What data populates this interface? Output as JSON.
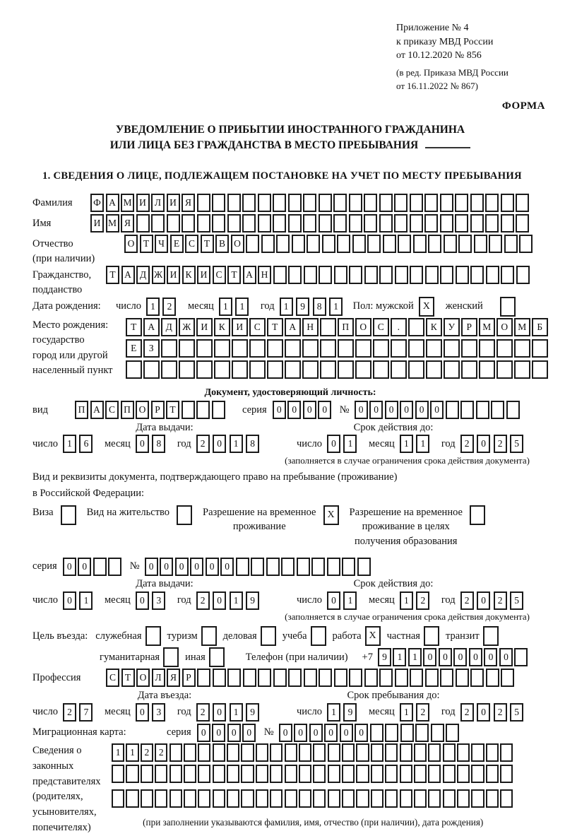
{
  "header": {
    "lines": [
      "Приложение № 4",
      "к приказу МВД России",
      "от 10.12.2020 № 856"
    ],
    "small_lines": [
      "(в ред. Приказа МВД России",
      "от 16.11.2022 № 867)"
    ]
  },
  "form_label": "ФОРМА",
  "title_line1": "УВЕДОМЛЕНИЕ О ПРИБЫТИИ ИНОСТРАННОГО ГРАЖДАНИНА",
  "title_line2": "ИЛИ ЛИЦА БЕЗ ГРАЖДАНСТВА В МЕСТО ПРЕБЫВАНИЯ",
  "section1": "1. СВЕДЕНИЯ О ЛИЦЕ, ПОДЛЕЖАЩЕМ ПОСТАНОВКЕ НА УЧЕТ ПО МЕСТУ ПРЕБЫВАНИЯ",
  "date_labels": {
    "day": "число",
    "month": "месяц",
    "year": "год"
  },
  "rows": [
    {
      "name": "surname",
      "type": "cells-row",
      "label": "Фамилия",
      "value": "ФАМИЛИЯ",
      "count": 29
    },
    {
      "name": "given-name",
      "type": "cells-row",
      "label": "Имя",
      "value": "ИМЯ",
      "count": 29
    },
    {
      "name": "patronymic",
      "type": "cells-row",
      "label": "Отчество",
      "label2": "(при наличии)",
      "value": "ОТЧЕСТВО",
      "count": 27
    },
    {
      "name": "citizenship",
      "type": "cells-row",
      "label": "Гражданство,",
      "label2": "подданство",
      "value": "ТАДЖИКИСТАН",
      "count": 28
    },
    {
      "name": "birth-date",
      "type": "date-sex-row",
      "label": "Дата рождения:",
      "day": "12",
      "month": "11",
      "year": "1981",
      "sex_male_label": "Пол: мужской",
      "sex_male": "X",
      "sex_female_label": "женский",
      "sex_female": ""
    },
    {
      "name": "birth-place",
      "type": "multi-cells",
      "labels": [
        "Место рождения:",
        "государство",
        "город или другой",
        "населенный пункт"
      ],
      "cell_rows": [
        {
          "value": "ТАДЖИКИСТАН ПОС. КУРМОМБ",
          "count": 24
        },
        {
          "value": "ЕЗ",
          "count": 24
        },
        {
          "value": "",
          "count": 24
        }
      ]
    },
    {
      "name": "identity-doc-heading",
      "type": "center-bold",
      "text": "Документ, удостоверяющий личность:"
    },
    {
      "name": "identity-doc",
      "type": "doc-row",
      "label": "вид",
      "doc_value": "ПАСПОРТ",
      "doc_count": 10,
      "series_label": "серия",
      "series_value": "0000",
      "series_count": 4,
      "number_label": "№",
      "number_value": "000000",
      "number_count": 11
    },
    {
      "name": "identity-dates-head",
      "type": "two-head",
      "left": "Дата выдачи:",
      "right": "Срок действия до:"
    },
    {
      "name": "identity-dates",
      "type": "two-dates",
      "l_day": "16",
      "l_month": "08",
      "l_year": "2018",
      "r_day": "01",
      "r_month": "11",
      "r_year": "2025"
    },
    {
      "name": "identity-validity-note",
      "type": "note-right",
      "text": "(заполняется в случае ограничения срока действия документа)"
    },
    {
      "name": "residence-doc-line1",
      "type": "para",
      "text": "Вид и реквизиты документа, подтверждающего право на пребывание (проживание)"
    },
    {
      "name": "residence-doc-line2",
      "type": "para",
      "text": "в Российской Федерации:"
    },
    {
      "name": "residence-permits",
      "type": "permits",
      "items": [
        {
          "label": "Виза",
          "checked": ""
        },
        {
          "label": "Вид на жительство",
          "checked": ""
        },
        {
          "label": "Разрешение на временное\nпроживание",
          "checked": "X"
        },
        {
          "label": "Разрешение на временное\nпроживание в целях\nполучения образования",
          "checked": ""
        }
      ]
    },
    {
      "name": "permit-series",
      "type": "doc-row",
      "series_label": "серия",
      "series_value": "00",
      "series_count": 4,
      "number_label": "№",
      "number_value": "000000",
      "number_count": 15
    },
    {
      "name": "permit-dates-head",
      "type": "two-head",
      "left": "Дата выдачи:",
      "right": "Срок действия до:"
    },
    {
      "name": "permit-dates",
      "type": "two-dates",
      "l_day": "01",
      "l_month": "03",
      "l_year": "2019",
      "r_day": "01",
      "r_month": "12",
      "r_year": "2025"
    },
    {
      "name": "permit-validity-note",
      "type": "note-right",
      "text": "(заполняется в случае ограничения срока действия документа)"
    },
    {
      "name": "visit-purpose",
      "type": "checks",
      "lead": "Цель въезда:",
      "items": [
        {
          "label": "служебная",
          "checked": ""
        },
        {
          "label": "туризм",
          "checked": ""
        },
        {
          "label": "деловая",
          "checked": ""
        },
        {
          "label": "учеба",
          "checked": ""
        },
        {
          "label": "работа",
          "checked": "X"
        },
        {
          "label": "частная",
          "checked": ""
        },
        {
          "label": "транзит",
          "checked": ""
        }
      ]
    },
    {
      "name": "visit-purpose-2",
      "type": "checks-phone",
      "items": [
        {
          "label": "гуманитарная",
          "checked": ""
        },
        {
          "label": "иная",
          "checked": ""
        }
      ],
      "phone_label": "Телефон (при наличии)",
      "phone_prefix": "+7",
      "phone_value": "911000000",
      "phone_count": 10
    },
    {
      "name": "profession",
      "type": "cells-row",
      "label": "Профессия",
      "value": "СТОЛЯР",
      "count": 27
    },
    {
      "name": "entry-stay-head",
      "type": "two-head",
      "left": "Дата въезда:",
      "right": "Срок пребывания до:"
    },
    {
      "name": "entry-stay-dates",
      "type": "two-dates",
      "l_day": "27",
      "l_month": "03",
      "l_year": "2019",
      "r_day": "19",
      "r_month": "12",
      "r_year": "2025"
    },
    {
      "name": "migration-card",
      "type": "doc-row",
      "label": "Миграционная карта:",
      "series_label": "серия",
      "series_value": "0000",
      "series_count": 4,
      "number_label": "№",
      "number_value": "000000",
      "number_count": 12
    },
    {
      "name": "legal-representatives",
      "type": "multi-cells",
      "labels": [
        "Сведения о",
        "законных",
        "представителях",
        "(родителях,",
        "усыновителях,",
        "попечителях)"
      ],
      "cell_rows": [
        {
          "value": "1122",
          "count": 28
        },
        {
          "value": "",
          "count": 28
        },
        {
          "value": "",
          "count": 28
        }
      ],
      "note": "(при заполнении указываются фамилия, имя, отчество (при наличии), дата рождения)"
    }
  ]
}
